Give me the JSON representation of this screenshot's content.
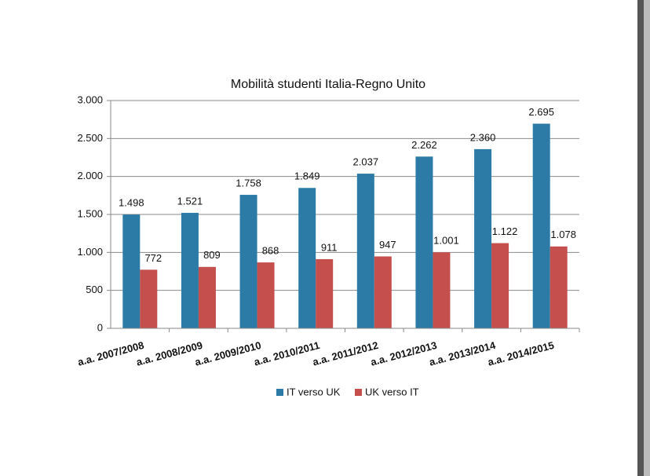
{
  "chart_data": {
    "type": "bar",
    "title": "Mobilità studenti Italia-Regno Unito",
    "categories": [
      "a.a. 2007/2008",
      "a.a. 2008/2009",
      "a.a. 2009/2010",
      "a.a. 2010/2011",
      "a.a. 2011/2012",
      "a.a. 2012/2013",
      "a.a. 2013/2014",
      "a.a. 2014/2015"
    ],
    "series": [
      {
        "name": "IT verso UK",
        "color": "#2b7ba6",
        "values": [
          1498,
          1521,
          1758,
          1849,
          2037,
          2262,
          2360,
          2695
        ],
        "value_labels": [
          "1.498",
          "1.521",
          "1.758",
          "1.849",
          "2.037",
          "2.262",
          "2.360",
          "2.695"
        ]
      },
      {
        "name": "UK verso IT",
        "color": "#c44f4c",
        "values": [
          772,
          809,
          868,
          911,
          947,
          1001,
          1122,
          1078
        ],
        "value_labels": [
          "772",
          "809",
          "868",
          "911",
          "947",
          "1.001",
          "1.122",
          "1.078"
        ]
      }
    ],
    "ylim": [
      0,
      3000
    ],
    "yticks": [
      0,
      500,
      {
        "value": 1000,
        "label": "1.000"
      },
      {
        "value": 1500,
        "label": "1.500"
      },
      {
        "value": 2000,
        "label": "2.000"
      },
      {
        "value": 2500,
        "label": "2.500"
      },
      {
        "value": 3000,
        "label": "3.000"
      }
    ],
    "grid": true,
    "legend": "bottom"
  }
}
